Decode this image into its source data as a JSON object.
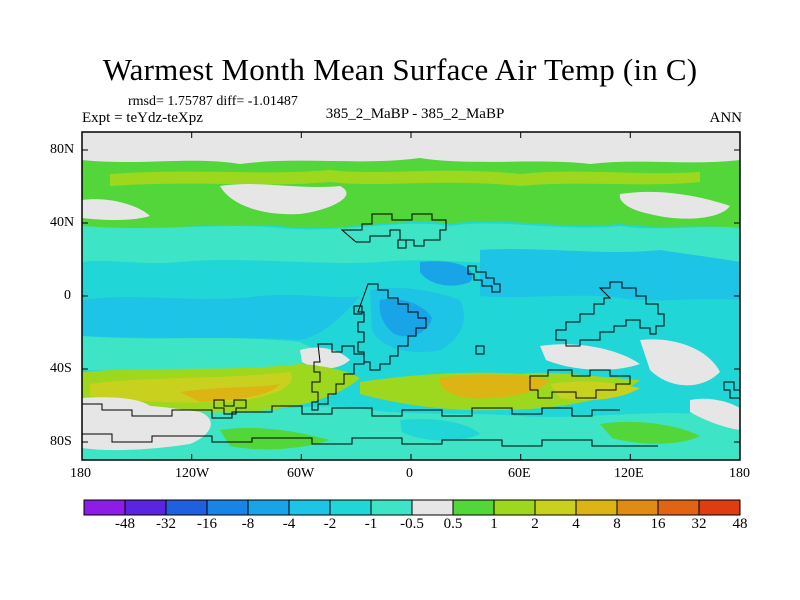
{
  "title": "Warmest Month Mean Surface Air Temp (in C)",
  "stats_text": "rmsd= 1.75787  diff= -1.01487",
  "expt_label": "Expt = teYdz-teXpz",
  "subtitle": "385_2_MaBP - 385_2_MaBP",
  "period": "ANN",
  "axes": {
    "x_ticks": [
      "180",
      "120W",
      "60W",
      "0",
      "60E",
      "120E",
      "180"
    ],
    "y_ticks": [
      "80N",
      "40N",
      "0",
      "40S",
      "80S"
    ]
  },
  "colorbar": {
    "labels": [
      "-48",
      "-32",
      "-16",
      "-8",
      "-4",
      "-2",
      "-1",
      "-0.5",
      "0.5",
      "1",
      "2",
      "4",
      "8",
      "16",
      "32",
      "48"
    ],
    "colors": [
      "#8c1ce6",
      "#5a24e0",
      "#1f5fe0",
      "#1884e8",
      "#1aa4e8",
      "#1dc4e6",
      "#20d6d6",
      "#3ee4c6",
      "#e6e6e6",
      "#52d63a",
      "#9ed81e",
      "#c8d21e",
      "#dcb414",
      "#e08c14",
      "#e06414",
      "#e03c14"
    ]
  },
  "colors": {
    "neutral": "#e6e6e6",
    "aqua": "#3ee4c6",
    "cyan": "#20d6d6",
    "light_blue": "#1dc4e6",
    "mid_blue": "#1aa4e8",
    "green": "#52d63a",
    "yellow_green": "#9ed81e",
    "olive": "#c8d21e",
    "orange": "#dcb414"
  }
}
